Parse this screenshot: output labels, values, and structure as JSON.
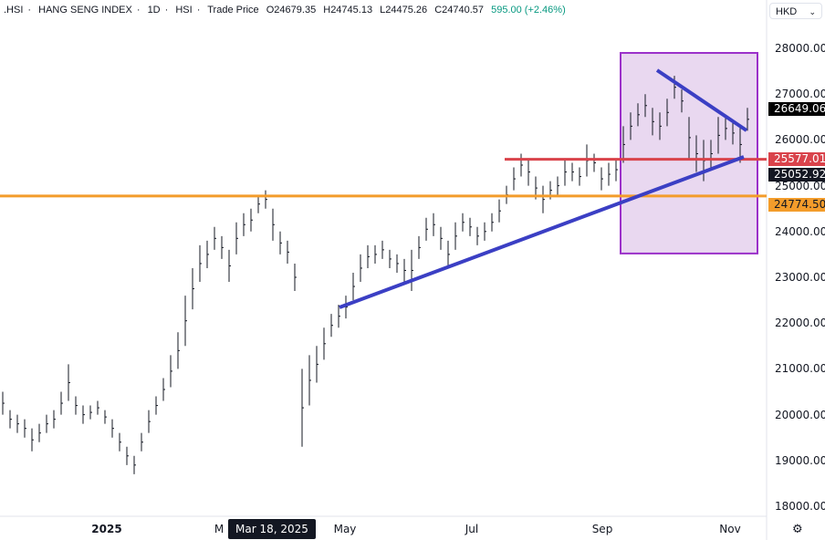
{
  "legend": {
    "symbol": ".HSI",
    "name": "HANG SENG INDEX",
    "interval": "1D",
    "exchange": "HSI",
    "price_type": "Trade Price",
    "open": "O24679.35",
    "high": "H24745.13",
    "low": "L24475.26",
    "close": "C24740.57",
    "change": "595.00 (+2.46%)"
  },
  "currency": "HKD",
  "crosshair_date": "Mar 18, 2025",
  "settings_icon": "gear-icon",
  "price_labels": [
    {
      "text": "26649.06",
      "value": 26649.06,
      "color": "#000000"
    },
    {
      "text": "25577.01",
      "value": 25577.01,
      "color": "#d9434b"
    },
    {
      "text": "25052.92",
      "value": 25052.92,
      "color": "#131722"
    },
    {
      "text": "24774.50",
      "value": 24774.5,
      "color": "#f39c2b"
    }
  ],
  "chart_data": {
    "type": "ohlc",
    "ylim": [
      17500,
      28500
    ],
    "y_ticks": [
      "28000.00",
      "27000.00",
      "26000.00",
      "25000.00",
      "24000.00",
      "23000.00",
      "22000.00",
      "21000.00",
      "20000.00",
      "19000.00",
      "18000.00"
    ],
    "y_tick_values": [
      28000,
      27000,
      26000,
      25000,
      24000,
      23000,
      22000,
      21000,
      20000,
      19000,
      18000
    ],
    "x_ticks": [
      "2025",
      "M",
      "May",
      "Jul",
      "Sep",
      "Nov"
    ],
    "grid": false,
    "bar_range_low_high": [
      [
        20000,
        20500
      ],
      [
        19700,
        20100
      ],
      [
        19600,
        20000
      ],
      [
        19500,
        19900
      ],
      [
        19200,
        19700
      ],
      [
        19400,
        19800
      ],
      [
        19600,
        20000
      ],
      [
        19700,
        20100
      ],
      [
        20000,
        20500
      ],
      [
        20300,
        21100
      ],
      [
        20000,
        20400
      ],
      [
        19800,
        20200
      ],
      [
        19900,
        20200
      ],
      [
        20000,
        20300
      ],
      [
        19800,
        20100
      ],
      [
        19500,
        19900
      ],
      [
        19200,
        19600
      ],
      [
        18900,
        19300
      ],
      [
        18700,
        19100
      ],
      [
        19200,
        19600
      ],
      [
        19600,
        20100
      ],
      [
        20000,
        20400
      ],
      [
        20300,
        20800
      ],
      [
        20600,
        21300
      ],
      [
        21000,
        21800
      ],
      [
        21500,
        22600
      ],
      [
        22300,
        23200
      ],
      [
        22900,
        23700
      ],
      [
        23200,
        23800
      ],
      [
        23600,
        24100
      ],
      [
        23400,
        23900
      ],
      [
        22900,
        23600
      ],
      [
        23500,
        24200
      ],
      [
        23900,
        24400
      ],
      [
        24000,
        24500
      ],
      [
        24400,
        24800
      ],
      [
        24500,
        24900
      ],
      [
        23800,
        24500
      ],
      [
        23500,
        24000
      ],
      [
        23300,
        23800
      ],
      [
        22700,
        23300
      ],
      [
        19300,
        21000
      ],
      [
        20200,
        21300
      ],
      [
        20700,
        21500
      ],
      [
        21200,
        21900
      ],
      [
        21700,
        22200
      ],
      [
        21900,
        22400
      ],
      [
        22100,
        22600
      ],
      [
        22500,
        23100
      ],
      [
        22900,
        23500
      ],
      [
        23200,
        23700
      ],
      [
        23300,
        23700
      ],
      [
        23400,
        23800
      ],
      [
        23200,
        23600
      ],
      [
        23100,
        23500
      ],
      [
        22900,
        23400
      ],
      [
        22700,
        23600
      ],
      [
        23400,
        23900
      ],
      [
        23800,
        24300
      ],
      [
        23900,
        24400
      ],
      [
        23600,
        24100
      ],
      [
        23200,
        23800
      ],
      [
        23600,
        24200
      ],
      [
        24000,
        24400
      ],
      [
        23900,
        24300
      ],
      [
        23700,
        24100
      ],
      [
        23800,
        24200
      ],
      [
        24000,
        24400
      ],
      [
        24200,
        24700
      ],
      [
        24600,
        25000
      ],
      [
        24900,
        25400
      ],
      [
        25200,
        25700
      ],
      [
        25000,
        25600
      ],
      [
        24700,
        25200
      ],
      [
        24400,
        25000
      ],
      [
        24700,
        25100
      ],
      [
        24800,
        25200
      ],
      [
        25000,
        25600
      ],
      [
        25100,
        25500
      ],
      [
        25000,
        25400
      ],
      [
        25200,
        25900
      ],
      [
        25300,
        25700
      ],
      [
        24900,
        25400
      ],
      [
        25000,
        25500
      ],
      [
        25100,
        25600
      ],
      [
        25500,
        26300
      ],
      [
        26000,
        26600
      ],
      [
        26300,
        26800
      ],
      [
        26500,
        27000
      ],
      [
        26100,
        26700
      ],
      [
        26000,
        26600
      ],
      [
        26300,
        26900
      ],
      [
        26900,
        27400
      ],
      [
        26600,
        27100
      ],
      [
        25600,
        26500
      ],
      [
        25300,
        26100
      ],
      [
        25100,
        26000
      ],
      [
        25400,
        26000
      ],
      [
        25700,
        26500
      ],
      [
        26000,
        26500
      ],
      [
        25900,
        26400
      ],
      [
        25500,
        26300
      ],
      [
        26200,
        26700
      ]
    ],
    "drawings": {
      "horizontal_levels": [
        {
          "value": 24774.5,
          "color": "#f39c2b"
        },
        {
          "value": 25577.01,
          "color": "#d9434b"
        }
      ],
      "trendlines": [
        {
          "from": 22343,
          "to": 25629,
          "color": "#3b3fc4"
        },
        {
          "from": 27522,
          "to": 26207,
          "color": "#3b3fc4"
        }
      ],
      "highlight_box": {
        "top": 27900,
        "bottom": 23520,
        "fill": "#e9d8f0",
        "border": "#9b30c9"
      }
    }
  }
}
